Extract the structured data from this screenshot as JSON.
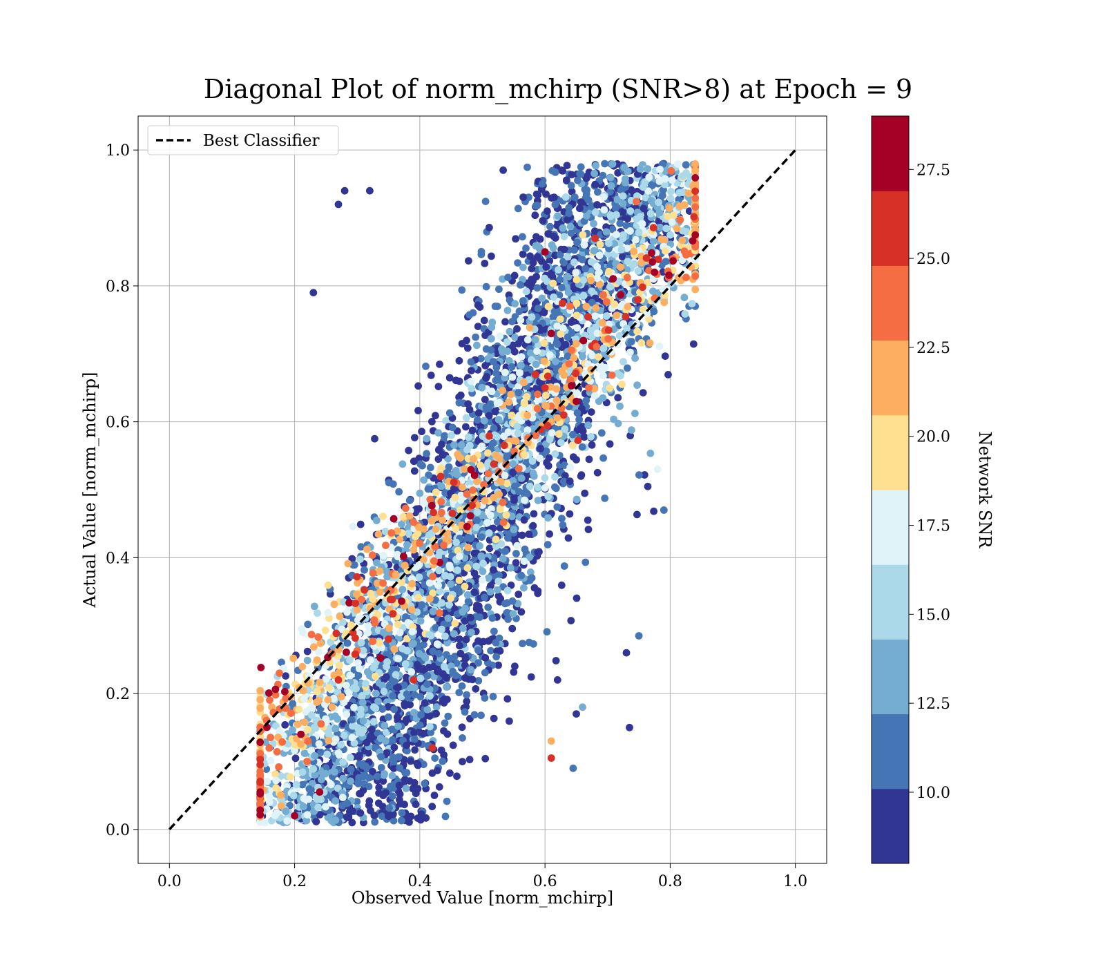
{
  "chart_data": {
    "type": "scatter",
    "title": "Diagonal Plot of norm_mchirp (SNR>8) at Epoch = 9",
    "xlabel": "Observed Value [norm_mchirp]",
    "ylabel": "Actual Value [norm_mchirp]",
    "xlim": [
      -0.05,
      1.05
    ],
    "ylim": [
      -0.05,
      1.05
    ],
    "x_ticks": [
      "0.0",
      "0.2",
      "0.4",
      "0.6",
      "0.8",
      "1.0"
    ],
    "y_ticks": [
      "0.0",
      "0.2",
      "0.4",
      "0.6",
      "0.8",
      "1.0"
    ],
    "grid": true,
    "legend_position": "top-left",
    "reference_line": {
      "name": "Best Classifier",
      "x": [
        0.0,
        1.0
      ],
      "y": [
        0.0,
        1.0
      ],
      "style": "dashed",
      "color": "#000000"
    },
    "colorbar": {
      "label": "Network SNR",
      "range": [
        8,
        29
      ],
      "ticks": [
        "10.0",
        "12.5",
        "15.0",
        "17.5",
        "20.0",
        "22.5",
        "25.0",
        "27.5"
      ],
      "tick_values": [
        10,
        12.5,
        15,
        17.5,
        20,
        22.5,
        25,
        27.5
      ],
      "colormap": "RdYlBu_r",
      "colors": [
        "#313695",
        "#4575b4",
        "#74add1",
        "#abd9e9",
        "#e0f3f8",
        "#fee090",
        "#fdae61",
        "#f46d43",
        "#d73027",
        "#a50026"
      ]
    },
    "point_count_note": "",
    "series": [
      {
        "points": [
          [
            0.2,
            0.02,
            27
          ],
          [
            0.24,
            0.055,
            27
          ],
          [
            0.15,
            0.058,
            21
          ],
          [
            0.16,
            0.04,
            17
          ],
          [
            0.28,
            0.94,
            9
          ],
          [
            0.27,
            0.92,
            9
          ],
          [
            0.32,
            0.94,
            10
          ],
          [
            0.23,
            0.79,
            9
          ],
          [
            0.79,
            0.47,
            11
          ],
          [
            0.73,
            0.26,
            9
          ],
          [
            0.75,
            0.285,
            11
          ],
          [
            0.735,
            0.15,
            9
          ],
          [
            0.645,
            0.09,
            11
          ],
          [
            0.61,
            0.105,
            25
          ],
          [
            0.61,
            0.13,
            22
          ],
          [
            0.65,
            0.17,
            10
          ],
          [
            0.66,
            0.18,
            13
          ],
          [
            0.62,
            0.22,
            9
          ],
          [
            0.84,
            0.77,
            12
          ],
          [
            0.83,
            0.77,
            12
          ],
          [
            0.78,
            0.53,
            17
          ],
          [
            0.82,
            0.96,
            19
          ],
          [
            0.84,
            0.96,
            13
          ],
          [
            0.79,
            0.98,
            11
          ],
          [
            0.63,
            0.61,
            25
          ],
          [
            0.65,
            0.63,
            27
          ],
          [
            0.67,
            0.65,
            24
          ],
          [
            0.6,
            0.65,
            25
          ],
          [
            0.61,
            0.73,
            27
          ],
          [
            0.6,
            0.85,
            28
          ],
          [
            0.64,
            0.77,
            24
          ],
          [
            0.68,
            0.87,
            26
          ],
          [
            0.33,
            0.2,
            14
          ],
          [
            0.35,
            0.28,
            25
          ],
          [
            0.39,
            0.22,
            26
          ],
          [
            0.42,
            0.12,
            25
          ],
          [
            0.21,
            0.14,
            27
          ],
          [
            0.27,
            0.22,
            25
          ],
          [
            0.26,
            0.18,
            21
          ],
          [
            0.22,
            0.1,
            23
          ]
        ]
      }
    ]
  }
}
